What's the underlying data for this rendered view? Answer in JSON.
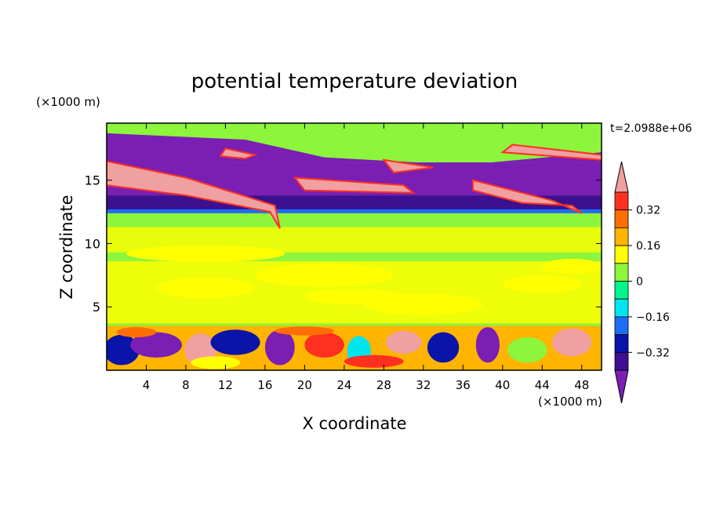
{
  "chart_data": {
    "type": "heatmap",
    "title": "potential temperature deviation",
    "time_label": "t=2.0988e+06",
    "xlabel": "X coordinate",
    "ylabel": "Z coordinate",
    "x_unit": "(×1000 m)",
    "z_unit": "(×1000 m)",
    "x_ticks": [
      4,
      8,
      12,
      16,
      20,
      24,
      28,
      32,
      36,
      40,
      44,
      48
    ],
    "z_ticks": [
      5,
      10,
      15
    ],
    "xlim": [
      0,
      50
    ],
    "zlim": [
      0,
      19.5
    ],
    "colorbar": {
      "levels": [
        -0.48,
        -0.4,
        -0.32,
        -0.24,
        -0.16,
        -0.08,
        0,
        0.08,
        0.16,
        0.24,
        0.32,
        0.4,
        0.48
      ],
      "tick_labels": [
        "0.32",
        "0.16",
        "0",
        "−0.16",
        "−0.32"
      ],
      "tick_values": [
        0.32,
        0.16,
        0,
        -0.16,
        -0.32
      ],
      "colors": [
        "#7a1eb4",
        "#3c1090",
        "#0a14a8",
        "#1e6ef5",
        "#00e6f0",
        "#00f58c",
        "#8cf53c",
        "#ffff00",
        "#ffb400",
        "#ff6e00",
        "#ff3020",
        "#f0a0a0"
      ]
    },
    "features": {
      "background_level": 0,
      "shear_layer_z": [
        12.4,
        13.8
      ],
      "shear_layer_level": -0.4,
      "upper_band_z": [
        16.5,
        18.7
      ],
      "upper_band_level": -0.48,
      "warm_sheet_level": 0.48,
      "boundary_layer_z": [
        0,
        3.5
      ],
      "mid_patches_level": 0.08
    }
  }
}
